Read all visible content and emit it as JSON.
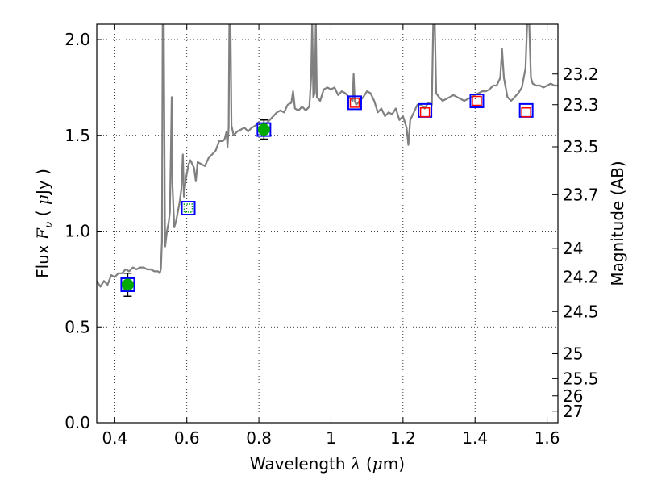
{
  "chart_data": {
    "type": "line",
    "xlabel_text": "Wavelength",
    "xlabel_symbol": "λ",
    "xlabel_unit_open": " (",
    "xlabel_unit_mu": "μ",
    "xlabel_unit_rest": "m)",
    "ylabel_text": "Flux",
    "ylabel_symbol": "F",
    "ylabel_subscript": "ν",
    "ylabel_unit_open": " ( ",
    "ylabel_unit_mu": "μ",
    "ylabel_unit_rest": "Jy )",
    "y2label": "Magnitude (AB)",
    "xlim": [
      0.35,
      1.63
    ],
    "ylim": [
      0.0,
      2.08
    ],
    "grid": true,
    "x_ticks": [
      {
        "v": 0.4,
        "label": "0.4"
      },
      {
        "v": 0.6,
        "label": "0.6"
      },
      {
        "v": 0.8,
        "label": "0.8"
      },
      {
        "v": 1.0,
        "label": "1"
      },
      {
        "v": 1.2,
        "label": "1.2"
      },
      {
        "v": 1.4,
        "label": "1.4"
      },
      {
        "v": 1.6,
        "label": "1.6"
      }
    ],
    "y_ticks": [
      {
        "v": 0.0,
        "label": "0.0"
      },
      {
        "v": 0.5,
        "label": "0.5"
      },
      {
        "v": 1.0,
        "label": "1.0"
      },
      {
        "v": 1.5,
        "label": "1.5"
      },
      {
        "v": 2.0,
        "label": "2.0"
      }
    ],
    "y2_ticks": [
      {
        "flux": 1.82,
        "label": "23.2"
      },
      {
        "flux": 1.66,
        "label": "23.3"
      },
      {
        "flux": 1.44,
        "label": "23.5"
      },
      {
        "flux": 1.19,
        "label": "23.7"
      },
      {
        "flux": 0.91,
        "label": "24"
      },
      {
        "flux": 0.76,
        "label": "24.2"
      },
      {
        "flux": 0.58,
        "label": "24.5"
      },
      {
        "flux": 0.36,
        "label": "25"
      },
      {
        "flux": 0.23,
        "label": "25.5"
      },
      {
        "flux": 0.14,
        "label": "26"
      },
      {
        "flux": 0.06,
        "label": "27"
      }
    ],
    "colors": {
      "spectrum": "#808080",
      "model_box": "#0000ff",
      "observed_box": "#ff0000",
      "detection": "#00aa00",
      "grid": "#000000"
    },
    "spectrum": [
      [
        0.35,
        0.74
      ],
      [
        0.36,
        0.71
      ],
      [
        0.37,
        0.74
      ],
      [
        0.38,
        0.72
      ],
      [
        0.39,
        0.77
      ],
      [
        0.4,
        0.76
      ],
      [
        0.41,
        0.78
      ],
      [
        0.42,
        0.78
      ],
      [
        0.43,
        0.8
      ],
      [
        0.44,
        0.79
      ],
      [
        0.45,
        0.81
      ],
      [
        0.46,
        0.8
      ],
      [
        0.47,
        0.81
      ],
      [
        0.48,
        0.81
      ],
      [
        0.49,
        0.8
      ],
      [
        0.5,
        0.8
      ],
      [
        0.51,
        0.79
      ],
      [
        0.52,
        0.79
      ],
      [
        0.525,
        0.78
      ],
      [
        0.528,
        0.8
      ],
      [
        0.531,
        0.95
      ],
      [
        0.533,
        2.1
      ],
      [
        0.536,
        2.1
      ],
      [
        0.539,
        1.05
      ],
      [
        0.54,
        0.92
      ],
      [
        0.545,
        1.0
      ],
      [
        0.55,
        1.05
      ],
      [
        0.553,
        1.1
      ],
      [
        0.556,
        1.45
      ],
      [
        0.558,
        1.7
      ],
      [
        0.56,
        1.25
      ],
      [
        0.565,
        1.02
      ],
      [
        0.57,
        1.05
      ],
      [
        0.575,
        1.1
      ],
      [
        0.58,
        1.15
      ],
      [
        0.585,
        1.22
      ],
      [
        0.589,
        1.4
      ],
      [
        0.592,
        1.18
      ],
      [
        0.598,
        1.28
      ],
      [
        0.605,
        1.35
      ],
      [
        0.61,
        1.37
      ],
      [
        0.62,
        1.33
      ],
      [
        0.625,
        1.26
      ],
      [
        0.63,
        1.36
      ],
      [
        0.64,
        1.35
      ],
      [
        0.65,
        1.34
      ],
      [
        0.66,
        1.38
      ],
      [
        0.67,
        1.4
      ],
      [
        0.68,
        1.42
      ],
      [
        0.69,
        1.47
      ],
      [
        0.7,
        1.47
      ],
      [
        0.705,
        1.48
      ],
      [
        0.71,
        1.52
      ],
      [
        0.713,
        1.44
      ],
      [
        0.716,
        1.54
      ],
      [
        0.718,
        2.1
      ],
      [
        0.721,
        2.1
      ],
      [
        0.724,
        1.55
      ],
      [
        0.73,
        1.5
      ],
      [
        0.74,
        1.52
      ],
      [
        0.75,
        1.53
      ],
      [
        0.76,
        1.54
      ],
      [
        0.77,
        1.52
      ],
      [
        0.78,
        1.54
      ],
      [
        0.79,
        1.55
      ],
      [
        0.8,
        1.57
      ],
      [
        0.81,
        1.53
      ],
      [
        0.82,
        1.56
      ],
      [
        0.83,
        1.58
      ],
      [
        0.84,
        1.6
      ],
      [
        0.85,
        1.62
      ],
      [
        0.86,
        1.63
      ],
      [
        0.87,
        1.62
      ],
      [
        0.88,
        1.66
      ],
      [
        0.89,
        1.67
      ],
      [
        0.895,
        1.73
      ],
      [
        0.9,
        1.64
      ],
      [
        0.91,
        1.63
      ],
      [
        0.92,
        1.65
      ],
      [
        0.93,
        1.63
      ],
      [
        0.94,
        1.65
      ],
      [
        0.945,
        1.8
      ],
      [
        0.948,
        2.1
      ],
      [
        0.951,
        1.7
      ],
      [
        0.955,
        1.72
      ],
      [
        0.958,
        2.1
      ],
      [
        0.961,
        1.7
      ],
      [
        0.97,
        1.68
      ],
      [
        0.98,
        1.74
      ],
      [
        0.99,
        1.75
      ],
      [
        1.0,
        1.74
      ],
      [
        1.01,
        1.75
      ],
      [
        1.02,
        1.71
      ],
      [
        1.03,
        1.73
      ],
      [
        1.04,
        1.72
      ],
      [
        1.05,
        1.7
      ],
      [
        1.06,
        1.68
      ],
      [
        1.063,
        1.82
      ],
      [
        1.066,
        1.68
      ],
      [
        1.07,
        1.66
      ],
      [
        1.08,
        1.68
      ],
      [
        1.09,
        1.7
      ],
      [
        1.1,
        1.73
      ],
      [
        1.11,
        1.72
      ],
      [
        1.12,
        1.68
      ],
      [
        1.13,
        1.62
      ],
      [
        1.14,
        1.64
      ],
      [
        1.15,
        1.6
      ],
      [
        1.16,
        1.62
      ],
      [
        1.17,
        1.61
      ],
      [
        1.18,
        1.64
      ],
      [
        1.19,
        1.58
      ],
      [
        1.2,
        1.6
      ],
      [
        1.21,
        1.54
      ],
      [
        1.215,
        1.45
      ],
      [
        1.22,
        1.58
      ],
      [
        1.23,
        1.62
      ],
      [
        1.24,
        1.66
      ],
      [
        1.25,
        1.66
      ],
      [
        1.26,
        1.64
      ],
      [
        1.27,
        1.67
      ],
      [
        1.28,
        1.66
      ],
      [
        1.284,
        2.1
      ],
      [
        1.288,
        2.1
      ],
      [
        1.292,
        1.72
      ],
      [
        1.3,
        1.7
      ],
      [
        1.31,
        1.68
      ],
      [
        1.32,
        1.69
      ],
      [
        1.33,
        1.7
      ],
      [
        1.34,
        1.71
      ],
      [
        1.35,
        1.7
      ],
      [
        1.36,
        1.69
      ],
      [
        1.37,
        1.68
      ],
      [
        1.38,
        1.69
      ],
      [
        1.39,
        1.7
      ],
      [
        1.4,
        1.71
      ],
      [
        1.41,
        1.72
      ],
      [
        1.42,
        1.73
      ],
      [
        1.43,
        1.73
      ],
      [
        1.44,
        1.74
      ],
      [
        1.45,
        1.76
      ],
      [
        1.46,
        1.76
      ],
      [
        1.47,
        1.8
      ],
      [
        1.475,
        1.95
      ],
      [
        1.48,
        1.8
      ],
      [
        1.49,
        1.7
      ],
      [
        1.5,
        1.68
      ],
      [
        1.51,
        1.7
      ],
      [
        1.52,
        1.72
      ],
      [
        1.53,
        1.75
      ],
      [
        1.54,
        1.85
      ],
      [
        1.545,
        2.1
      ],
      [
        1.55,
        2.1
      ],
      [
        1.555,
        1.8
      ],
      [
        1.56,
        1.77
      ],
      [
        1.57,
        1.76
      ],
      [
        1.58,
        1.76
      ],
      [
        1.59,
        1.75
      ],
      [
        1.6,
        1.76
      ],
      [
        1.61,
        1.77
      ],
      [
        1.62,
        1.76
      ],
      [
        1.63,
        1.76
      ]
    ],
    "model_boxes": [
      {
        "x": 0.436,
        "y": 0.72
      },
      {
        "x": 0.604,
        "y": 1.12
      },
      {
        "x": 0.814,
        "y": 1.53
      },
      {
        "x": 1.066,
        "y": 1.67
      },
      {
        "x": 1.261,
        "y": 1.63
      },
      {
        "x": 1.405,
        "y": 1.68
      },
      {
        "x": 1.542,
        "y": 1.63
      }
    ],
    "observed_boxes": [
      {
        "x": 1.066,
        "y": 1.67
      },
      {
        "x": 1.261,
        "y": 1.62
      },
      {
        "x": 1.405,
        "y": 1.68
      },
      {
        "x": 1.542,
        "y": 1.62
      }
    ],
    "detections": [
      {
        "x": 0.436,
        "y": 0.72,
        "err": 0.06
      },
      {
        "x": 0.814,
        "y": 1.53,
        "err": 0.05
      }
    ],
    "upper_limit": {
      "x": 0.604,
      "y": 1.12
    }
  }
}
